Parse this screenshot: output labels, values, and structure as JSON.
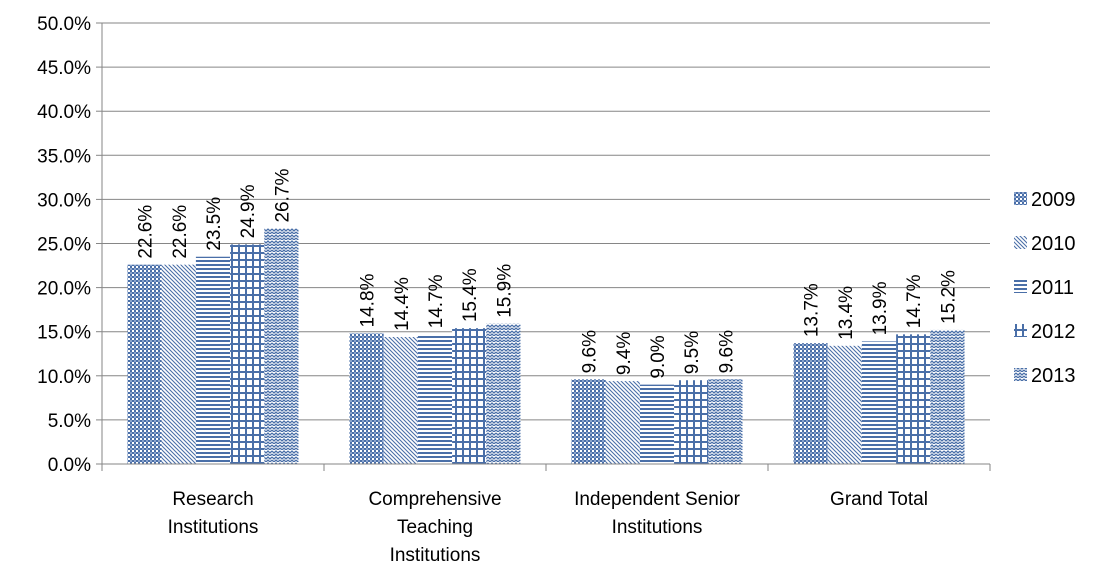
{
  "chart_data": {
    "type": "bar",
    "title": "",
    "xlabel": "",
    "ylabel": "",
    "categories": [
      [
        "Research",
        "Institutions"
      ],
      [
        "Comprehensive",
        "Teaching",
        "Institutions"
      ],
      [
        "Independent Senior",
        "Institutions"
      ],
      [
        "Grand Total"
      ]
    ],
    "series": [
      {
        "name": "2009",
        "values": [
          22.6,
          14.8,
          9.6,
          13.7
        ],
        "labels": [
          "22.6%",
          "14.8%",
          "9.6%",
          "13.7%"
        ],
        "pattern": "checker"
      },
      {
        "name": "2010",
        "values": [
          22.6,
          14.4,
          9.4,
          13.4
        ],
        "labels": [
          "22.6%",
          "14.4%",
          "9.4%",
          "13.4%"
        ],
        "pattern": "diagonal"
      },
      {
        "name": "2011",
        "values": [
          23.5,
          14.7,
          9.0,
          13.9
        ],
        "labels": [
          "23.5%",
          "14.7%",
          "9.0%",
          "13.9%"
        ],
        "pattern": "horizontal"
      },
      {
        "name": "2012",
        "values": [
          24.9,
          15.4,
          9.5,
          14.7
        ],
        "labels": [
          "24.9%",
          "15.4%",
          "9.5%",
          "14.7%"
        ],
        "pattern": "grid"
      },
      {
        "name": "2013",
        "values": [
          26.7,
          15.9,
          9.6,
          15.2
        ],
        "labels": [
          "26.7%",
          "15.9%",
          "9.6%",
          "15.2%"
        ],
        "pattern": "wave"
      }
    ],
    "ylim": [
      0,
      50
    ],
    "yticks": [
      0,
      5,
      10,
      15,
      20,
      25,
      30,
      35,
      40,
      45,
      50
    ],
    "ytick_labels": [
      "0.0%",
      "5.0%",
      "10.0%",
      "15.0%",
      "20.0%",
      "25.0%",
      "30.0%",
      "35.0%",
      "40.0%",
      "45.0%",
      "50.0%"
    ],
    "grid": true,
    "legend_position": "right",
    "bar_color": "#4a6fa8"
  }
}
